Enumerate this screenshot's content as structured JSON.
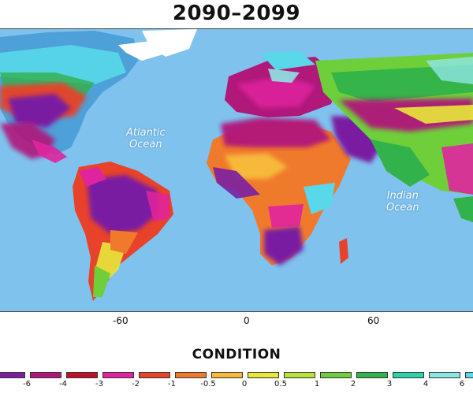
{
  "title": "2090–2099",
  "ocean_labels": {
    "atlantic": [
      "Atlantic",
      "Ocean"
    ],
    "indian": [
      "Indian",
      "Ocean"
    ]
  },
  "lon_ticks": [
    "-60",
    "0",
    "60"
  ],
  "legend": {
    "title": "CONDITION",
    "labels": [
      "-6",
      "-4",
      "-3",
      "-2",
      "-1",
      "-0.5",
      "0",
      "0.5",
      "1",
      "2",
      "3",
      "4",
      "6"
    ],
    "colors": [
      "#7a1fa2",
      "#b0187a",
      "#c0102a",
      "#e0239f",
      "#e8432a",
      "#f07a2c",
      "#f6b93a",
      "#e8e83a",
      "#b9e33a",
      "#6ecf3a",
      "#32b24a",
      "#2ed1a8",
      "#8ee6e6",
      "#58d8e8"
    ]
  },
  "colors": {
    "ocean": "#7fc2ee",
    "ice": "#ffffff"
  }
}
